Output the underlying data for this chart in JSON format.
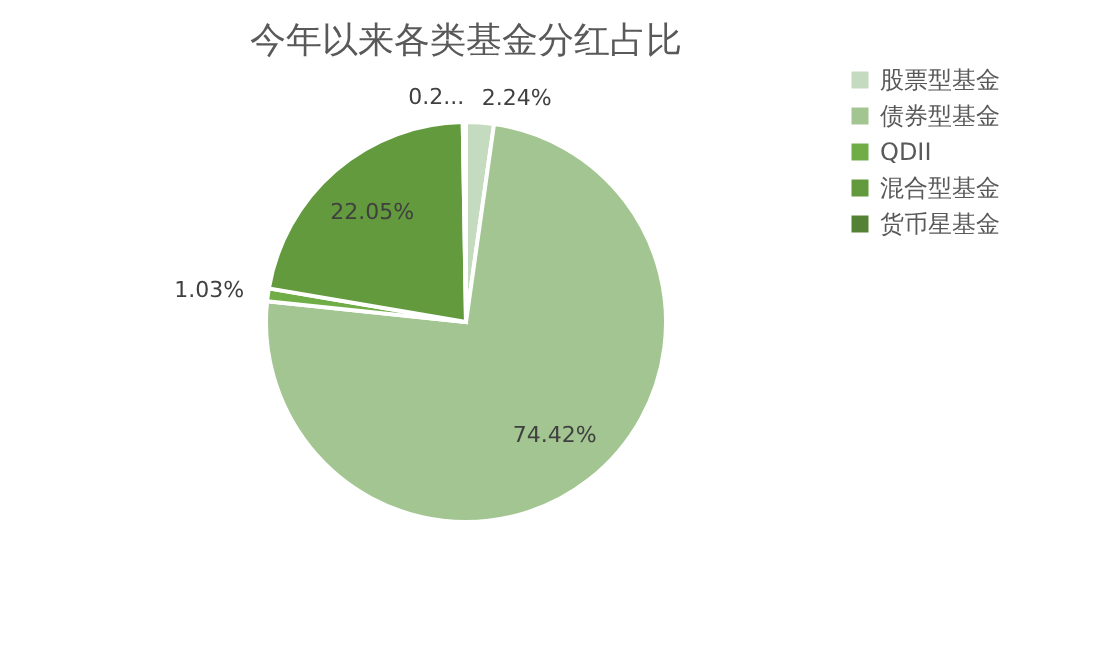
{
  "chart_data": {
    "type": "pie",
    "title": "今年以来各类基金分红占比",
    "categories": [
      "股票型基金",
      "债券型基金",
      "QDII",
      "混合型基金",
      "货币星基金"
    ],
    "values": [
      2.24,
      74.42,
      1.03,
      22.05,
      0.26
    ],
    "value_labels": [
      "2.24%",
      "74.42%",
      "1.03%",
      "22.05%",
      "0.2..."
    ],
    "colors": [
      "#c5dbbf",
      "#a2c591",
      "#70ad47",
      "#629a3d",
      "#548235"
    ],
    "legend": "right"
  }
}
